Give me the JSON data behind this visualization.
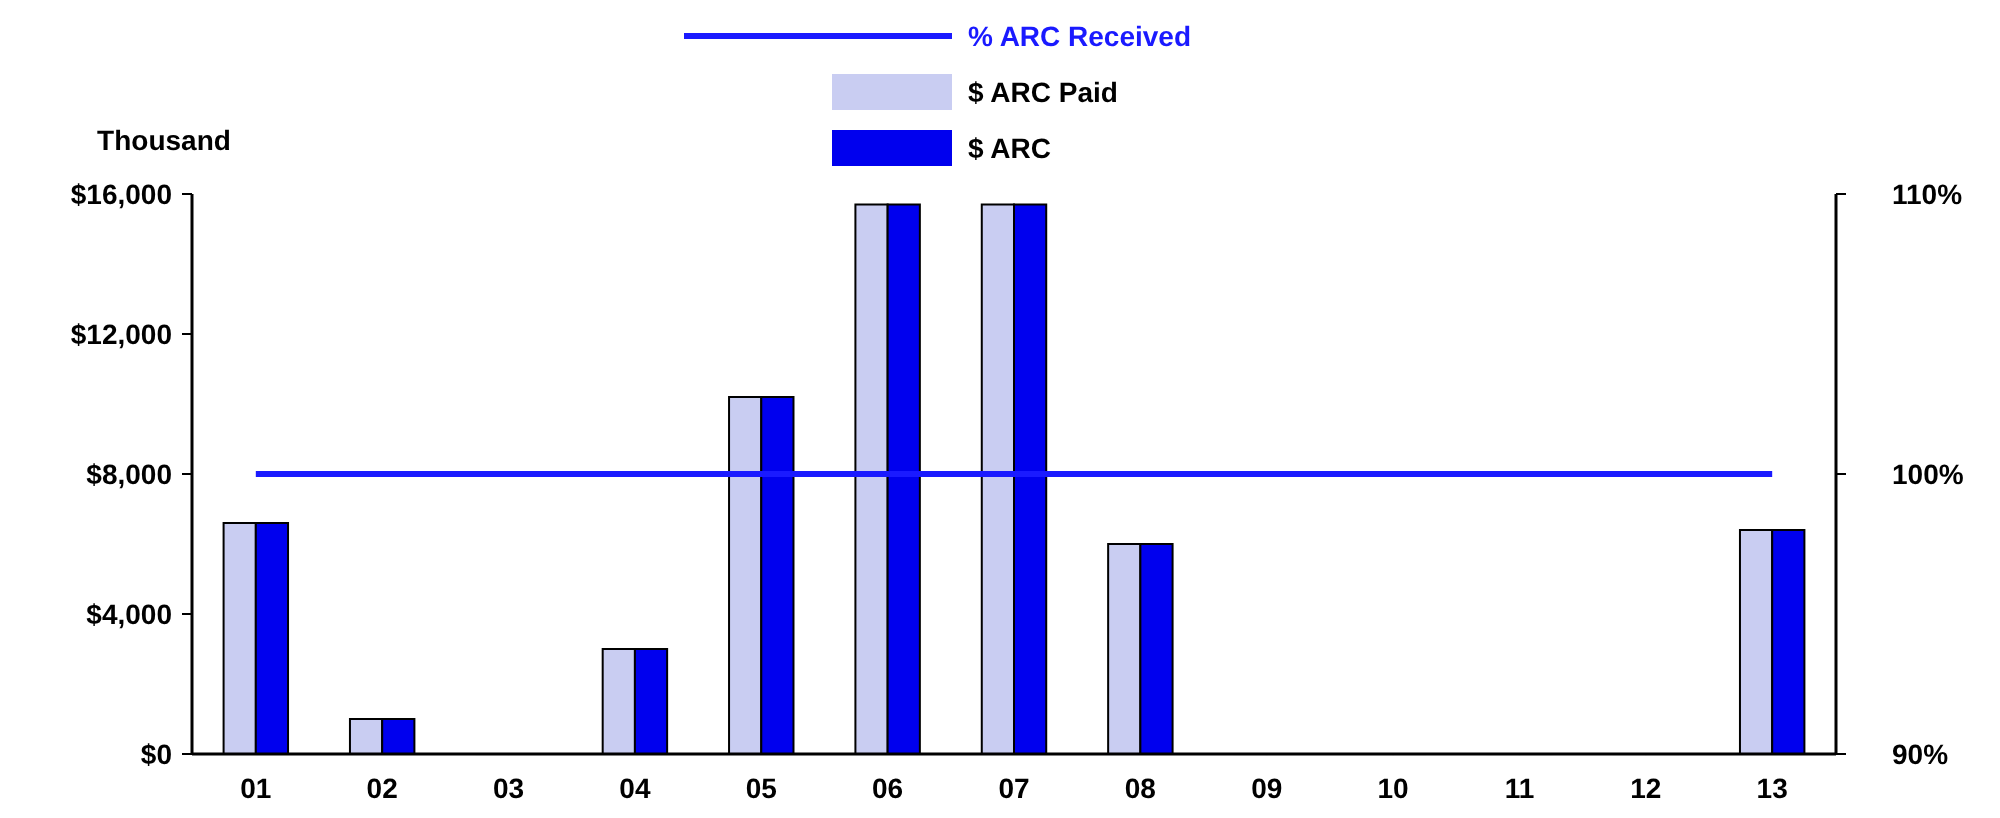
{
  "chart_data": {
    "type": "bar",
    "ylabel": "Thousand",
    "categories": [
      "01",
      "02",
      "03",
      "04",
      "05",
      "06",
      "07",
      "08",
      "09",
      "10",
      "11",
      "12",
      "13"
    ],
    "series": [
      {
        "name": "% ARC Received",
        "type": "line",
        "axis": "y2",
        "color": "#1a1aff",
        "values": [
          100,
          100,
          100,
          100,
          100,
          100,
          100,
          100,
          100,
          100,
          100,
          100,
          100
        ]
      },
      {
        "name": "$ ARC Paid",
        "color": "#c9cdf2",
        "values": [
          6600,
          1000,
          0,
          3000,
          10200,
          15700,
          15700,
          6000,
          0,
          0,
          0,
          0,
          6400
        ]
      },
      {
        "name": "$ ARC",
        "color": "#0000ee",
        "values": [
          6600,
          1000,
          0,
          3000,
          10200,
          15700,
          15700,
          6000,
          0,
          0,
          0,
          0,
          6400
        ]
      }
    ],
    "ylim": [
      0,
      16000
    ],
    "yticks": [
      {
        "value": 0,
        "label": "$0"
      },
      {
        "value": 4000,
        "label": "$4,000"
      },
      {
        "value": 8000,
        "label": "$8,000"
      },
      {
        "value": 12000,
        "label": "$12,000"
      },
      {
        "value": 16000,
        "label": "$16,000"
      }
    ],
    "y2lim": [
      90,
      110
    ],
    "y2ticks": [
      {
        "value": 90,
        "label": "90%"
      },
      {
        "value": 100,
        "label": "100%"
      },
      {
        "value": 110,
        "label": "110%"
      }
    ],
    "legend": "top",
    "grid": false
  }
}
